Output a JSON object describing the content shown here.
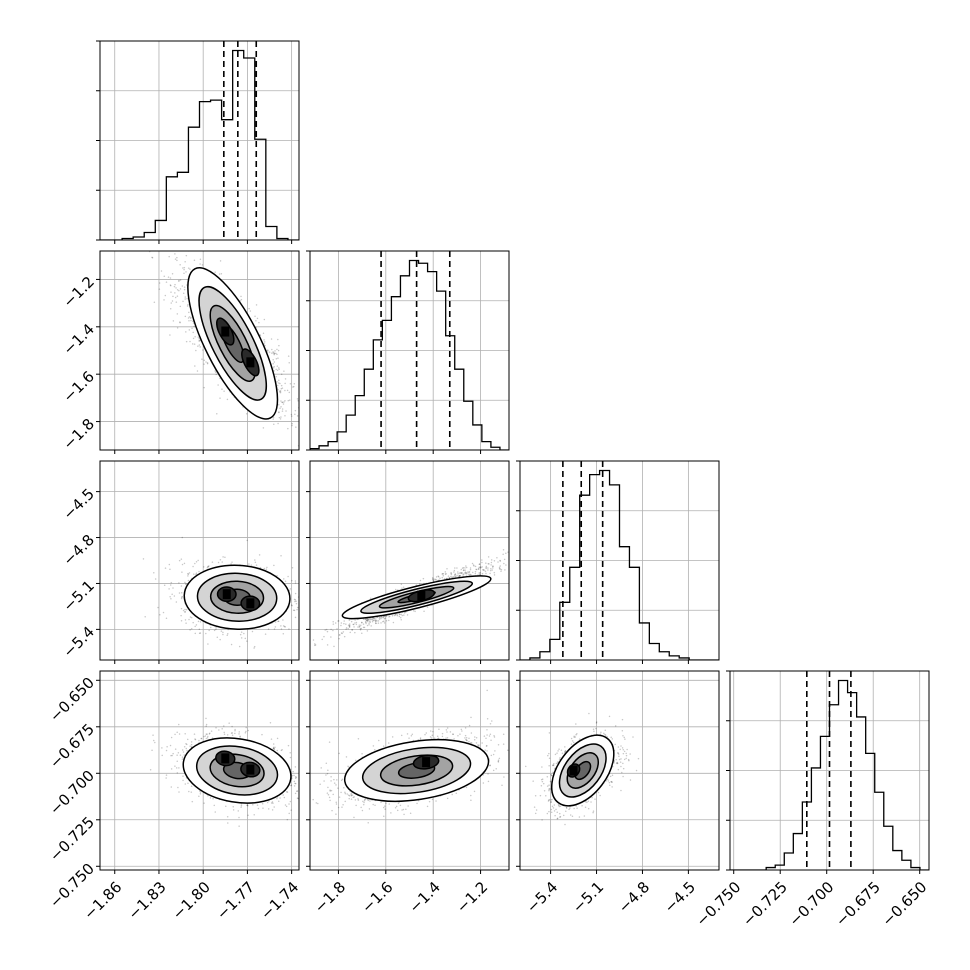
{
  "chart_data": {
    "type": "corner",
    "title": "",
    "grid": true,
    "quantile_style": "dashed",
    "parameters": [
      {
        "label": "",
        "range": [
          -1.87,
          -1.735
        ],
        "ticks": [
          -1.86,
          -1.83,
          -1.8,
          -1.77,
          -1.74
        ],
        "tick_labels": [
          "−1.86",
          "−1.83",
          "−1.80",
          "−1.77",
          "−1.74"
        ],
        "quantiles": [
          -1.786,
          -1.7765,
          -1.764
        ],
        "hist_counts": [
          0,
          0,
          1,
          2,
          5,
          13,
          42,
          45,
          75,
          92,
          93,
          80,
          126,
          121,
          67,
          9,
          1,
          0
        ]
      },
      {
        "label": "",
        "range": [
          -1.92,
          -1.08
        ],
        "ticks": [
          -1.8,
          -1.6,
          -1.4,
          -1.2
        ],
        "tick_labels": [
          "−1.8",
          "−1.6",
          "−1.4",
          "−1.2"
        ],
        "quantiles": [
          -1.62,
          -1.47,
          -1.33
        ],
        "hist_counts": [
          1,
          3,
          6,
          13,
          25,
          39,
          58,
          79,
          93,
          110,
          125,
          136,
          134,
          128,
          114,
          82,
          58,
          35,
          18,
          6,
          2,
          0
        ]
      },
      {
        "label": "",
        "range": [
          -5.6,
          -4.3
        ],
        "ticks": [
          -5.4,
          -5.1,
          -4.8,
          -4.5
        ],
        "tick_labels": [
          "−5.4",
          "−5.1",
          "−4.8",
          "−4.5"
        ],
        "quantiles": [
          -5.32,
          -5.2,
          -5.06
        ],
        "hist_counts": [
          0,
          1,
          4,
          10,
          28,
          45,
          80,
          90,
          92,
          85,
          55,
          45,
          18,
          8,
          4,
          2,
          1,
          0,
          0,
          0
        ]
      },
      {
        "label": "",
        "range": [
          -0.752,
          -0.645
        ],
        "ticks": [
          -0.75,
          -0.725,
          -0.7,
          -0.675,
          -0.65
        ],
        "tick_labels": [
          "−0.750",
          "−0.725",
          "−0.700",
          "−0.675",
          "−0.650"
        ],
        "quantiles": [
          -0.7107,
          -0.6985,
          -0.687
        ],
        "hist_counts": [
          0,
          0,
          0,
          0,
          1,
          2,
          7,
          15,
          28,
          42,
          55,
          68,
          78,
          73,
          63,
          48,
          32,
          18,
          8,
          4,
          1,
          0
        ]
      }
    ],
    "pairs": [
      {
        "x": 0,
        "y": 1,
        "cov": [
          [
            0.00032,
            -0.0021
          ],
          [
            -0.0021,
            0.022
          ]
        ],
        "center": [
          -1.78,
          -1.47
        ],
        "modes": [
          [
            -1.785,
            -1.42
          ],
          [
            -1.768,
            -1.55
          ]
        ]
      },
      {
        "x": 0,
        "y": 2,
        "cov": [
          [
            0.00032,
            -0.00016
          ],
          [
            -0.00016,
            0.011
          ]
        ],
        "center": [
          -1.777,
          -5.19
        ],
        "modes": [
          [
            -1.784,
            -5.17
          ],
          [
            -1.768,
            -5.23
          ]
        ]
      },
      {
        "x": 0,
        "y": 3,
        "cov": [
          [
            0.00032,
            -5e-05
          ],
          [
            -5e-05,
            8.5e-05
          ]
        ],
        "center": [
          -1.777,
          -0.6985
        ],
        "modes": [
          [
            -1.785,
            -0.692
          ],
          [
            -1.768,
            -0.698
          ]
        ]
      },
      {
        "x": 1,
        "y": 2,
        "cov": [
          [
            0.022,
            0.0145
          ],
          [
            0.0145,
            0.011
          ]
        ],
        "center": [
          -1.47,
          -5.19
        ],
        "modes": [
          [
            -1.45,
            -5.18
          ]
        ]
      },
      {
        "x": 1,
        "y": 3,
        "cov": [
          [
            0.022,
            0.00066
          ],
          [
            0.00066,
            8.5e-05
          ]
        ],
        "center": [
          -1.47,
          -0.6985
        ],
        "modes": [
          [
            -1.43,
            -0.694
          ]
        ]
      },
      {
        "x": 2,
        "y": 3,
        "cov": [
          [
            0.011,
            0.00046
          ],
          [
            0.00046,
            8.5e-05
          ]
        ],
        "center": [
          -5.19,
          -0.6985
        ],
        "modes": [
          [
            -5.25,
            -0.6985
          ]
        ]
      }
    ]
  }
}
